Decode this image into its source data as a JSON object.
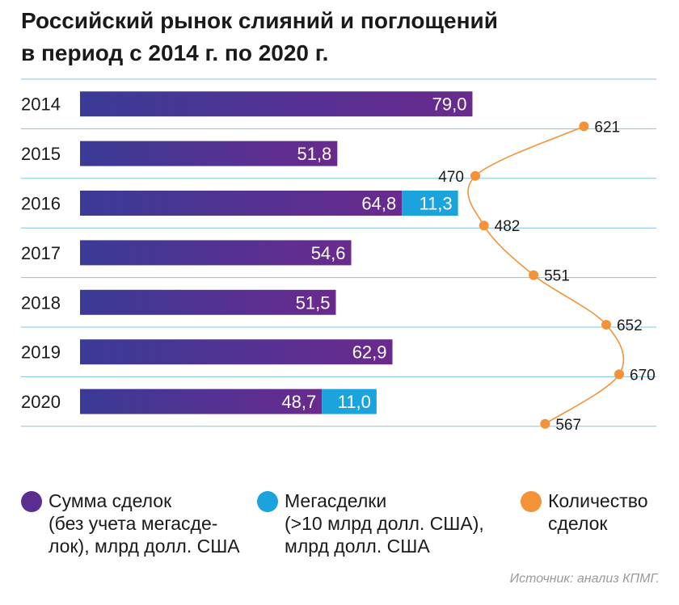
{
  "title": {
    "line1": "Российский рынок слияний и поглощений",
    "line2": "в период с 2014 г. по 2020 г."
  },
  "chart_data": {
    "type": "bar",
    "orientation": "horizontal",
    "stacked": true,
    "categories": [
      "2014",
      "2015",
      "2016",
      "2017",
      "2018",
      "2019",
      "2020"
    ],
    "series": [
      {
        "name": "Сумма сделок (без учета мегасделок), млрд долл. США",
        "values": [
          79.0,
          51.8,
          64.8,
          54.6,
          51.5,
          62.9,
          48.7
        ],
        "labels": [
          "79,0",
          "51,8",
          "64,8",
          "54,6",
          "51,5",
          "62,9",
          "48,7"
        ],
        "color": "#5b2d8e"
      },
      {
        "name": "Мегасделки (>10 млрд долл. США), млрд долл. США",
        "values": [
          null,
          null,
          11.3,
          null,
          null,
          null,
          11.0
        ],
        "labels": [
          null,
          null,
          "11,3",
          null,
          null,
          null,
          "11,0"
        ],
        "color": "#1aa3dd"
      }
    ],
    "line_series": {
      "name": "Количество сделок",
      "values": [
        621,
        470,
        482,
        551,
        652,
        670,
        567
      ],
      "labels": [
        "621",
        "470",
        "482",
        "551",
        "652",
        "670",
        "567"
      ],
      "color": "#f39237"
    },
    "gradient": {
      "start": "#3a3b96",
      "end": "#6a2a8e"
    }
  },
  "legend": [
    {
      "text": "Сумма сделок\n(без учета мегасде-\nлок), млрд долл. США",
      "color": "#5b2d8e"
    },
    {
      "text": "Мегасделки\n(>10 млрд долл. США),\nмлрд долл. США",
      "color": "#1aa3dd"
    },
    {
      "text": "Количество\nсделок",
      "color": "#f39237"
    }
  ],
  "source": "Источник: анализ КПМГ."
}
